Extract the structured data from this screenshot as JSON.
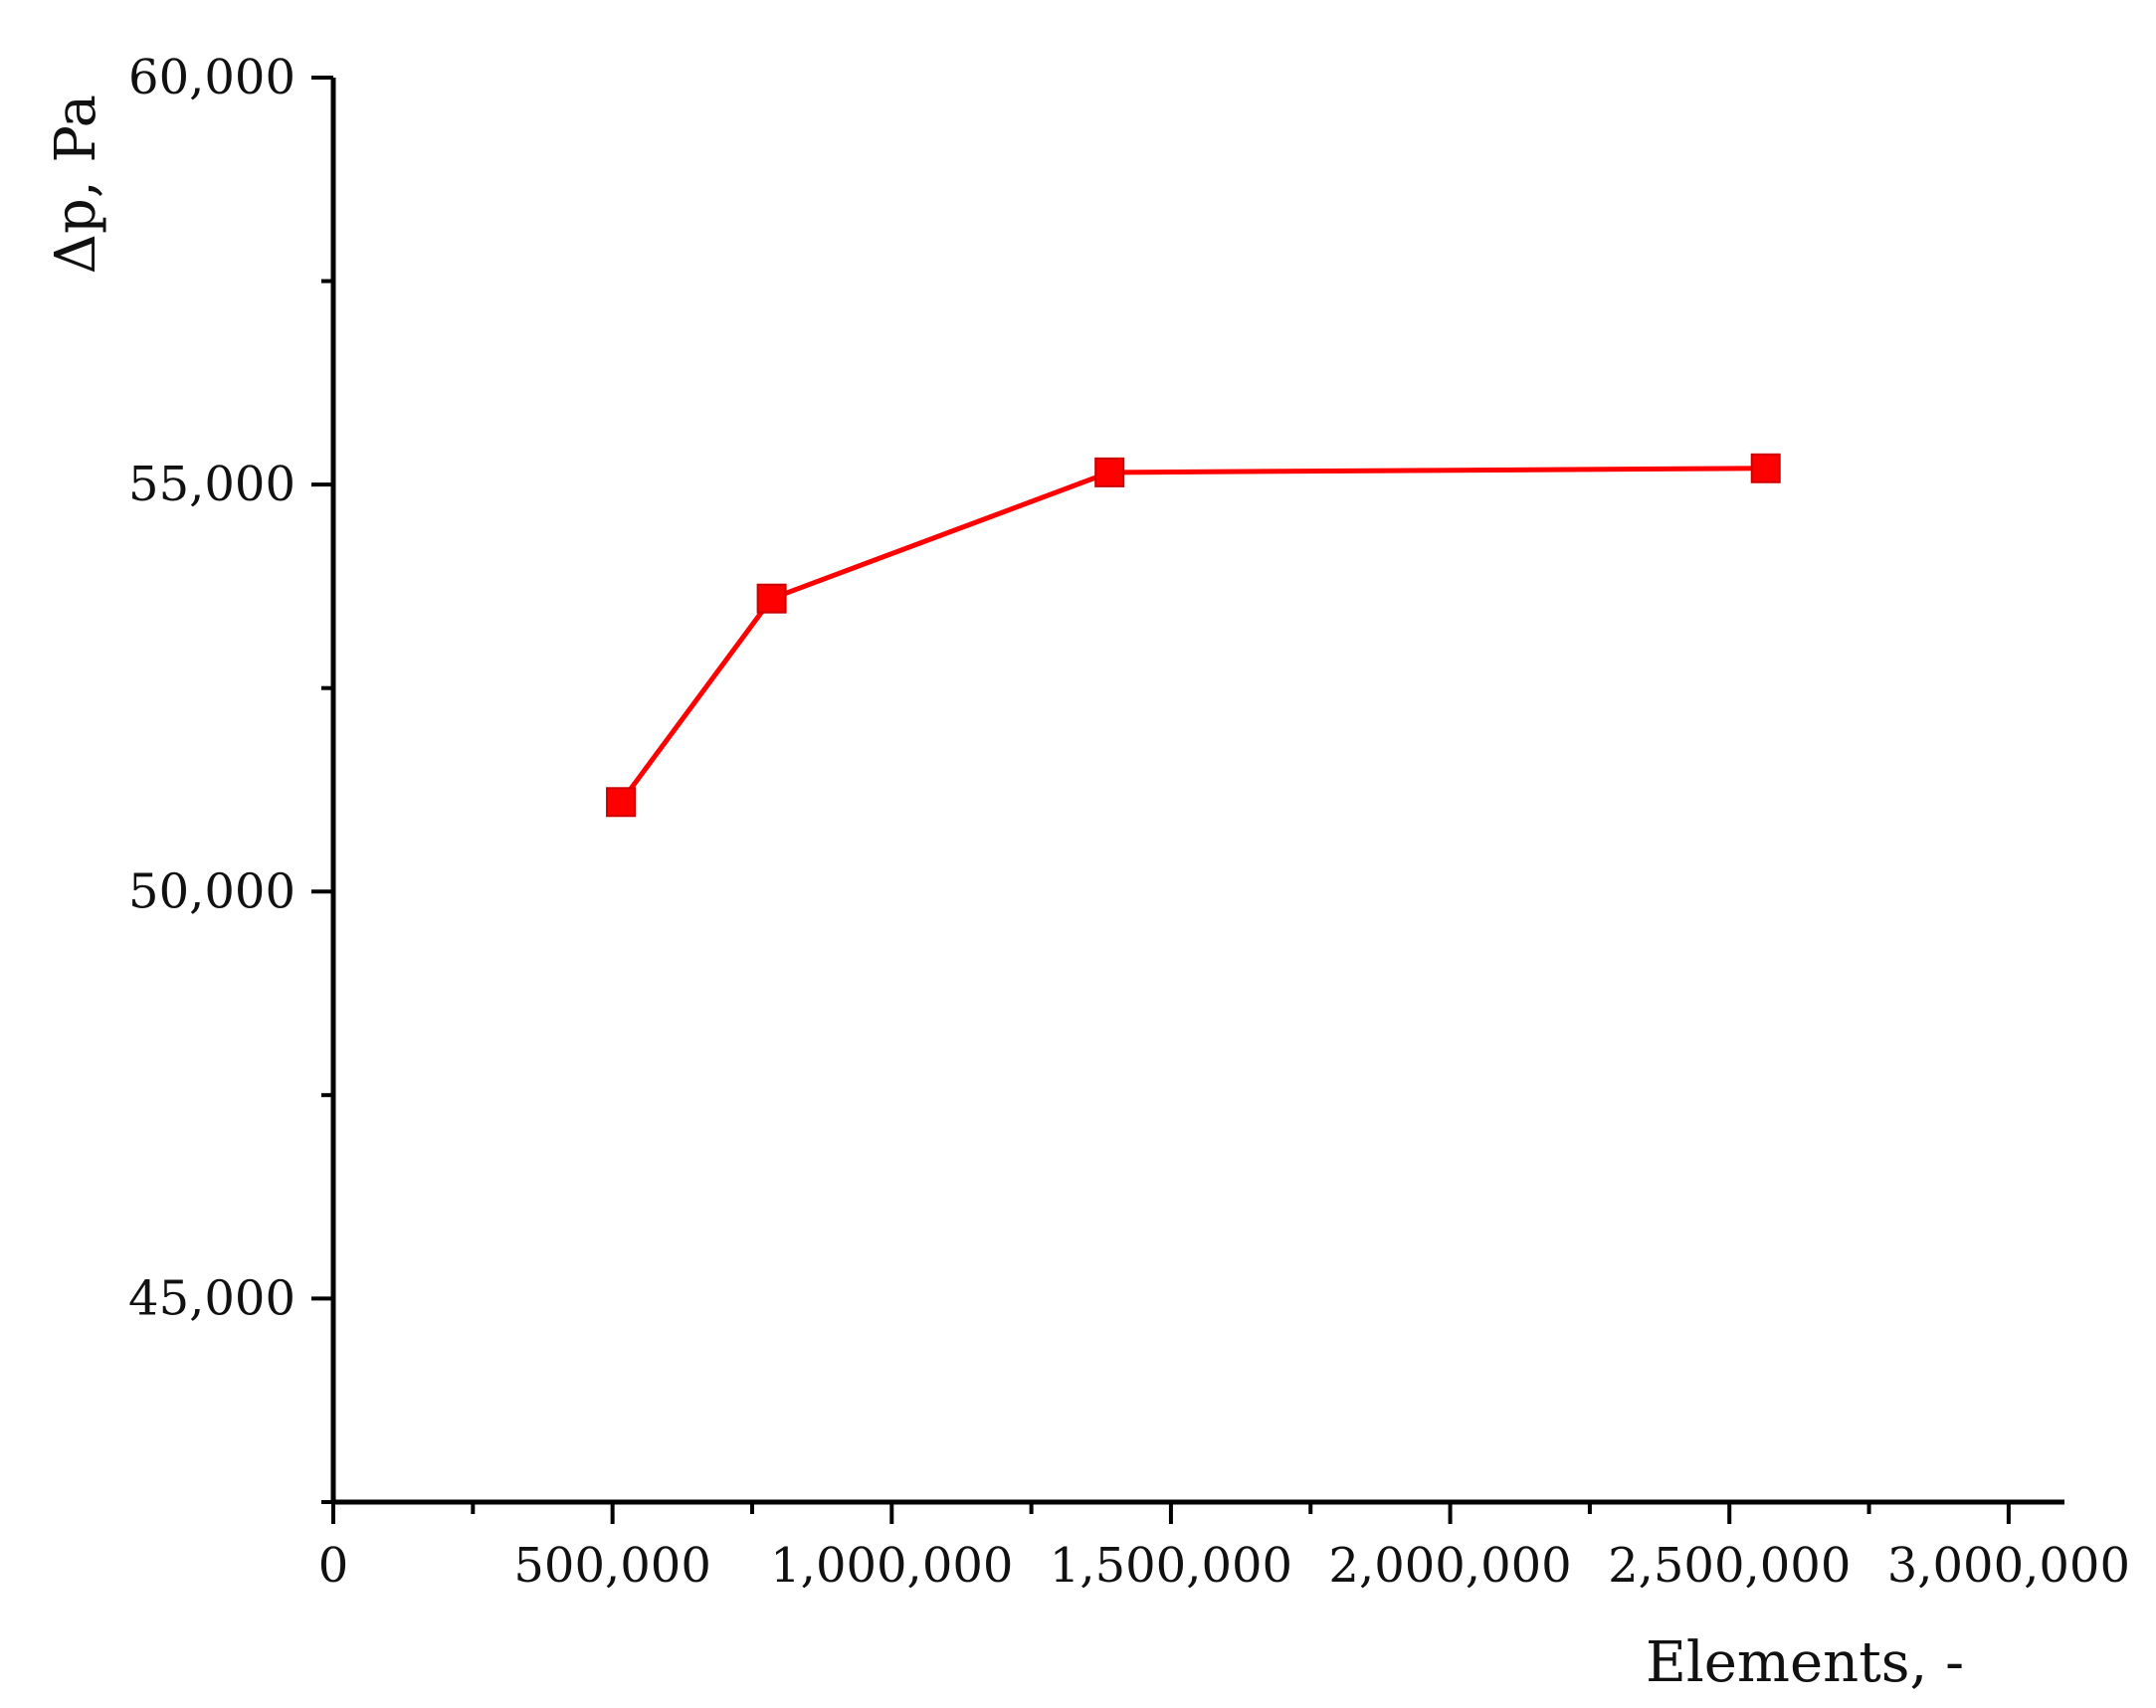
{
  "chart_data": {
    "type": "line",
    "title": "",
    "xlabel": "Elements, -",
    "ylabel": "Δp, Pa",
    "xlim": [
      0,
      3100000
    ],
    "ylim": [
      42500,
      60000
    ],
    "grid": false,
    "legend": "none",
    "x_ticks": [
      0,
      500000,
      1000000,
      1500000,
      2000000,
      2500000,
      3000000
    ],
    "x_tick_labels": [
      "0",
      "500,000",
      "1,000,000",
      "1,500,000",
      "2,000,000",
      "2,500,000",
      "3,000,000"
    ],
    "x_minor_ticks": [
      250000,
      750000,
      1250000,
      1750000,
      2250000,
      2750000
    ],
    "y_ticks": [
      45000,
      50000,
      55000,
      60000
    ],
    "y_tick_labels": [
      "45,000",
      "50,000",
      "55,000",
      "60,000"
    ],
    "y_minor_ticks": [
      42500,
      47500,
      52500,
      57500
    ],
    "series": [
      {
        "color": "#ff0000",
        "marker": "square",
        "x": [
          515000,
          785000,
          1390000,
          2565000
        ],
        "y": [
          51100,
          53600,
          55150,
          55200
        ]
      }
    ]
  }
}
